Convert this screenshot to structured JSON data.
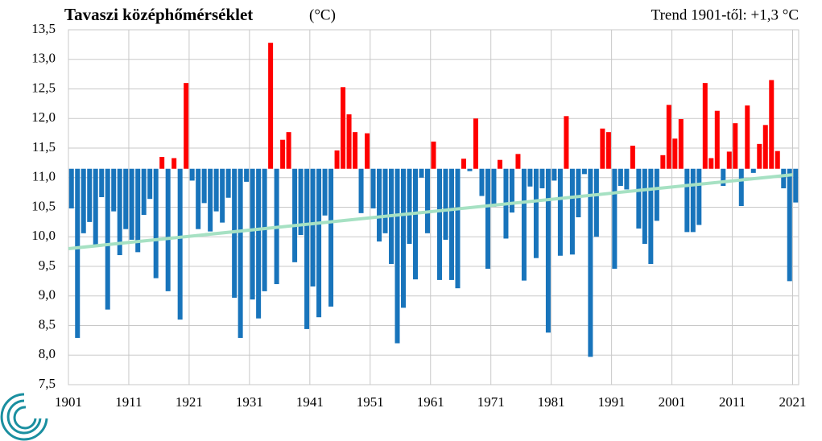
{
  "chart_data": {
    "type": "bar",
    "title": "Tavaszi középhőmérséklet",
    "unit": "(°C)",
    "annotation": "Trend 1901-től: +1,3 °C",
    "x": [
      1901,
      1902,
      1903,
      1904,
      1905,
      1906,
      1907,
      1908,
      1909,
      1910,
      1911,
      1912,
      1913,
      1914,
      1915,
      1916,
      1917,
      1918,
      1919,
      1920,
      1921,
      1922,
      1923,
      1924,
      1925,
      1926,
      1927,
      1928,
      1929,
      1930,
      1931,
      1932,
      1933,
      1934,
      1935,
      1936,
      1937,
      1938,
      1939,
      1940,
      1941,
      1942,
      1943,
      1944,
      1945,
      1946,
      1947,
      1948,
      1949,
      1950,
      1951,
      1952,
      1953,
      1954,
      1955,
      1956,
      1957,
      1958,
      1959,
      1960,
      1961,
      1962,
      1963,
      1964,
      1965,
      1966,
      1967,
      1968,
      1969,
      1970,
      1971,
      1972,
      1973,
      1974,
      1975,
      1976,
      1977,
      1978,
      1979,
      1980,
      1981,
      1982,
      1983,
      1984,
      1985,
      1986,
      1987,
      1988,
      1989,
      1990,
      1991,
      1992,
      1993,
      1994,
      1995,
      1996,
      1997,
      1998,
      1999,
      2000,
      2001,
      2002,
      2003,
      2004,
      2005,
      2006,
      2007,
      2008,
      2009,
      2010,
      2011,
      2012,
      2013,
      2014,
      2015,
      2016,
      2017,
      2018,
      2019,
      2020,
      2021
    ],
    "values": [
      10.48,
      8.29,
      10.06,
      10.25,
      9.83,
      10.67,
      8.77,
      10.43,
      9.69,
      10.13,
      9.95,
      9.74,
      10.37,
      10.64,
      9.3,
      11.35,
      9.08,
      11.33,
      8.6,
      12.6,
      10.95,
      10.13,
      10.57,
      10.09,
      10.43,
      10.24,
      10.66,
      8.97,
      8.29,
      10.93,
      8.94,
      8.62,
      9.08,
      13.28,
      9.2,
      11.64,
      11.77,
      9.57,
      10.03,
      8.44,
      9.16,
      8.64,
      10.36,
      8.82,
      11.46,
      12.53,
      12.07,
      11.77,
      10.4,
      11.75,
      10.48,
      9.92,
      10.06,
      9.54,
      8.2,
      8.8,
      9.88,
      9.28,
      11.0,
      10.06,
      11.61,
      9.27,
      9.95,
      9.27,
      9.13,
      11.32,
      11.11,
      12.0,
      10.69,
      9.46,
      10.51,
      11.3,
      9.97,
      10.41,
      11.4,
      9.26,
      10.85,
      9.64,
      10.82,
      8.38,
      10.95,
      9.68,
      12.04,
      9.7,
      10.33,
      11.06,
      7.97,
      10.0,
      11.83,
      11.77,
      9.46,
      10.86,
      10.8,
      11.54,
      10.14,
      9.88,
      9.54,
      10.27,
      11.38,
      12.23,
      11.66,
      11.99,
      10.08,
      10.08,
      10.2,
      12.6,
      11.33,
      12.13,
      10.86,
      11.44,
      11.92,
      10.52,
      12.22,
      11.08,
      11.57,
      11.89,
      12.65,
      11.45,
      10.82,
      9.25,
      10.58
    ],
    "baseline": 11.15,
    "colors": {
      "above": "#ff0000",
      "below": "#1874bb"
    },
    "trend": {
      "x": [
        1901,
        2021
      ],
      "values": [
        9.8,
        11.05
      ],
      "color": "#a6e1c3"
    },
    "xlim": [
      1901,
      2022
    ],
    "xticks": [
      1901,
      1911,
      1921,
      1931,
      1941,
      1951,
      1961,
      1971,
      1981,
      1991,
      2001,
      2011,
      2021
    ],
    "ylim": [
      7.5,
      13.5
    ],
    "yticks": [
      {
        "value": 7.5,
        "label": "7,5"
      },
      {
        "value": 8.0,
        "label": "8,0"
      },
      {
        "value": 8.5,
        "label": "8,5"
      },
      {
        "value": 9.0,
        "label": "9,0"
      },
      {
        "value": 9.5,
        "label": "9,5"
      },
      {
        "value": 10.0,
        "label": "10,0"
      },
      {
        "value": 10.5,
        "label": "10,5"
      },
      {
        "value": 11.0,
        "label": "11,0"
      },
      {
        "value": 11.5,
        "label": "11,5"
      },
      {
        "value": 12.0,
        "label": "12,0"
      },
      {
        "value": 12.5,
        "label": "12,5"
      },
      {
        "value": 13.0,
        "label": "13,0"
      },
      {
        "value": 13.5,
        "label": "13,5"
      }
    ],
    "grid": true
  }
}
